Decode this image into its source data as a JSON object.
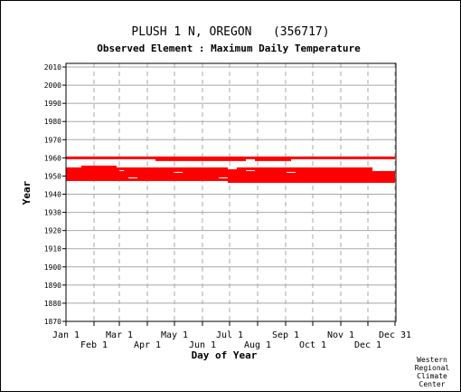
{
  "chart_data": {
    "type": "scatter",
    "title": "PLUSH 1 N, OREGON   (356717)",
    "subtitle": "Observed Element : Maximum Daily Temperature",
    "xlabel": "Day of Year",
    "ylabel": "Year",
    "xlim": [
      1,
      366
    ],
    "ylim": [
      1870,
      2012
    ],
    "y_ticks": [
      1870,
      1880,
      1890,
      1900,
      1910,
      1920,
      1930,
      1940,
      1950,
      1960,
      1970,
      1980,
      1990,
      2000,
      2010
    ],
    "x_ticks": [
      {
        "label": "Jan 1",
        "day": 1,
        "row": "upper"
      },
      {
        "label": "Feb 1",
        "day": 32,
        "row": "lower"
      },
      {
        "label": "Mar 1",
        "day": 60,
        "row": "upper"
      },
      {
        "label": "Apr 1",
        "day": 91,
        "row": "lower"
      },
      {
        "label": "May 1",
        "day": 121,
        "row": "upper"
      },
      {
        "label": "Jun 1",
        "day": 152,
        "row": "lower"
      },
      {
        "label": "Jul 1",
        "day": 182,
        "row": "upper"
      },
      {
        "label": "Aug 1",
        "day": 213,
        "row": "lower"
      },
      {
        "label": "Sep 1",
        "day": 244,
        "row": "upper"
      },
      {
        "label": "Oct 1",
        "day": 274,
        "row": "lower"
      },
      {
        "label": "Nov 1",
        "day": 305,
        "row": "upper"
      },
      {
        "label": "Dec 1",
        "day": 335,
        "row": "lower"
      },
      {
        "label": "Dec 31",
        "day": 365,
        "row": "upper"
      }
    ],
    "grid": true,
    "series_color": "#ff0000",
    "data_segments": [
      {
        "year": 1960,
        "start": 1,
        "end": 365
      },
      {
        "year": 1959,
        "start": 100,
        "end": 200
      },
      {
        "year": 1959,
        "start": 210,
        "end": 250
      },
      {
        "year": 1955,
        "start": 18,
        "end": 57
      },
      {
        "year": 1954,
        "start": 1,
        "end": 180
      },
      {
        "year": 1954,
        "start": 190,
        "end": 340
      },
      {
        "year": 1953,
        "start": 1,
        "end": 60
      },
      {
        "year": 1953,
        "start": 65,
        "end": 200
      },
      {
        "year": 1953,
        "start": 210,
        "end": 340
      },
      {
        "year": 1952,
        "start": 1,
        "end": 120
      },
      {
        "year": 1952,
        "start": 130,
        "end": 245
      },
      {
        "year": 1952,
        "start": 255,
        "end": 365
      },
      {
        "year": 1951,
        "start": 1,
        "end": 365
      },
      {
        "year": 1950,
        "start": 1,
        "end": 365
      },
      {
        "year": 1949,
        "start": 1,
        "end": 70
      },
      {
        "year": 1949,
        "start": 80,
        "end": 170
      },
      {
        "year": 1949,
        "start": 180,
        "end": 365
      },
      {
        "year": 1948,
        "start": 1,
        "end": 365
      },
      {
        "year": 1947,
        "start": 180,
        "end": 365
      }
    ]
  },
  "credit": [
    "Western",
    "Regional",
    "Climate",
    "Center"
  ]
}
